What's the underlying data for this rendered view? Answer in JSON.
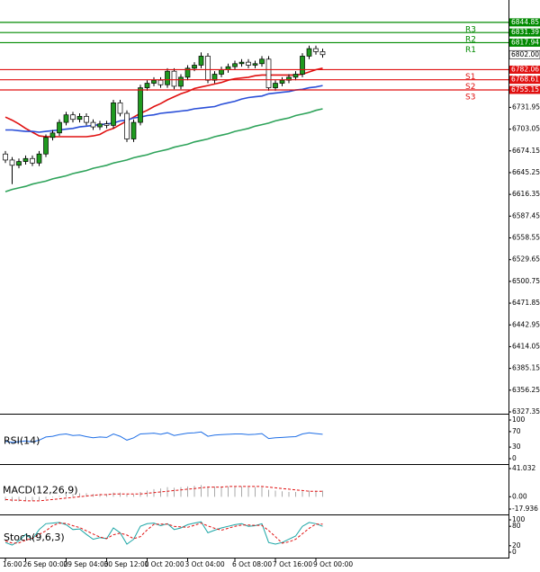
{
  "chart_data": [
    {
      "type": "candlestick",
      "categories": [
        "16:00",
        null,
        null,
        "26 Sep 00:00",
        null,
        null,
        null,
        null,
        null,
        "29 Sep 04:00",
        null,
        null,
        null,
        null,
        null,
        "30 Sep 12:00",
        null,
        null,
        null,
        null,
        null,
        "1 Oct 20:00",
        null,
        null,
        null,
        null,
        null,
        "3 Oct 04:00",
        null,
        null,
        null,
        null,
        null,
        null,
        "6 Oct 08:00",
        null,
        null,
        null,
        null,
        null,
        "7 Oct 16:00",
        null,
        null,
        null,
        null,
        null,
        "9 Oct 00:00",
        null
      ],
      "open": [
        6670,
        6662,
        6655,
        6660,
        6664,
        6658,
        6670,
        6692,
        6698,
        6712,
        6722,
        6716,
        6720,
        6712,
        6706,
        6710,
        6708,
        6738,
        6724,
        6690,
        6712,
        6758,
        6764,
        6768,
        6762,
        6780,
        6760,
        6772,
        6784,
        6788,
        6800,
        6768,
        6776,
        6782,
        6786,
        6790,
        6792,
        6788,
        6790,
        6796,
        6758,
        6764,
        6768,
        6772,
        6776,
        6800,
        6810,
        6806
      ],
      "high": [
        6674,
        6666,
        6664,
        6668,
        6668,
        6674,
        6696,
        6702,
        6716,
        6726,
        6726,
        6724,
        6724,
        6716,
        6714,
        6714,
        6742,
        6742,
        6728,
        6716,
        6762,
        6768,
        6772,
        6772,
        6784,
        6784,
        6776,
        6788,
        6792,
        6805,
        6804,
        6780,
        6786,
        6790,
        6794,
        6796,
        6796,
        6794,
        6800,
        6800,
        6768,
        6772,
        6776,
        6780,
        6804,
        6814,
        6814,
        6810
      ],
      "low": [
        6658,
        6630,
        6651,
        6656,
        6654,
        6654,
        6666,
        6688,
        6694,
        6708,
        6712,
        6712,
        6708,
        6702,
        6702,
        6704,
        6704,
        6720,
        6686,
        6686,
        6708,
        6754,
        6760,
        6758,
        6758,
        6756,
        6756,
        6768,
        6780,
        6784,
        6764,
        6764,
        6772,
        6778,
        6782,
        6786,
        6784,
        6784,
        6786,
        6754,
        6754,
        6760,
        6764,
        6768,
        6772,
        6796,
        6802,
        6798
      ],
      "close": [
        6662,
        6655,
        6660,
        6664,
        6658,
        6670,
        6692,
        6698,
        6712,
        6722,
        6716,
        6720,
        6712,
        6706,
        6710,
        6708,
        6738,
        6724,
        6690,
        6712,
        6758,
        6764,
        6768,
        6762,
        6780,
        6760,
        6772,
        6784,
        6788,
        6800,
        6768,
        6776,
        6782,
        6786,
        6790,
        6792,
        6788,
        6790,
        6796,
        6758,
        6764,
        6768,
        6772,
        6776,
        6800,
        6810,
        6806,
        6802
      ],
      "up_color": "#1f9a1f",
      "down_color": "#ffffff",
      "series": [
        {
          "color": "#e01010",
          "values": [
            6719,
            6715,
            6710,
            6704,
            6699,
            6694,
            6693,
            6693,
            6693,
            6693,
            6693,
            6693,
            6693,
            6694,
            6696,
            6701,
            6704,
            6709,
            6714,
            6719,
            6724,
            6728,
            6733,
            6737,
            6742,
            6746,
            6750,
            6753,
            6757,
            6759,
            6761,
            6763,
            6765,
            6768,
            6770,
            6771,
            6772,
            6774,
            6775,
            6775,
            6775,
            6775,
            6775,
            6775,
            6776,
            6779,
            6782,
            6784
          ]
        },
        {
          "color": "#2a4fd8",
          "values": [
            6702,
            6702,
            6701,
            6700,
            6700,
            6699,
            6700,
            6701,
            6702,
            6703,
            6704,
            6706,
            6707,
            6708,
            6709,
            6710,
            6711,
            6714,
            6715,
            6718,
            6719,
            6721,
            6722,
            6724,
            6725,
            6726,
            6727,
            6728,
            6730,
            6731,
            6732,
            6733,
            6736,
            6738,
            6740,
            6743,
            6745,
            6746,
            6747,
            6750,
            6751,
            6752,
            6753,
            6755,
            6756,
            6758,
            6759,
            6761
          ]
        },
        {
          "color": "#2ea35a",
          "values": [
            6620,
            6623,
            6625,
            6627,
            6630,
            6632,
            6634,
            6637,
            6639,
            6641,
            6644,
            6646,
            6648,
            6651,
            6653,
            6655,
            6658,
            6660,
            6662,
            6665,
            6667,
            6669,
            6672,
            6674,
            6676,
            6679,
            6681,
            6683,
            6686,
            6688,
            6690,
            6693,
            6695,
            6697,
            6700,
            6702,
            6704,
            6707,
            6709,
            6711,
            6714,
            6716,
            6718,
            6721,
            6723,
            6725,
            6728,
            6730
          ]
        }
      ],
      "ylim": [
        6327.35,
        6874.6
      ],
      "yticks": [
        6731.95,
        6703.05,
        6674.15,
        6645.25,
        6616.35,
        6587.45,
        6558.55,
        6529.65,
        6500.75,
        6471.85,
        6442.95,
        6414.05,
        6385.15,
        6356.25,
        6327.35
      ],
      "last_price": {
        "value": 6802,
        "label": "6802.00"
      },
      "levels": [
        {
          "name": "R3",
          "value": 6844.85,
          "color": "#008a00"
        },
        {
          "name": "R2",
          "value": 6831.39,
          "color": "#008a00"
        },
        {
          "name": "R1",
          "value": 6817.94,
          "color": "#008a00"
        },
        {
          "name": "S1",
          "value": 6782.06,
          "color": "#e01010"
        },
        {
          "name": "S2",
          "value": 6768.61,
          "color": "#e01010"
        },
        {
          "name": "S3",
          "value": 6755.15,
          "color": "#e01010"
        }
      ]
    },
    {
      "type": "line",
      "title": "RSI(14)",
      "ylim": [
        0,
        100
      ],
      "yticks": [
        100,
        70,
        30,
        0
      ],
      "series": [
        {
          "color": "#1e6ee6",
          "values": [
            45,
            42,
            44,
            46,
            43,
            48,
            56,
            58,
            62,
            64,
            60,
            61,
            57,
            54,
            56,
            55,
            64,
            58,
            48,
            54,
            64,
            65,
            66,
            63,
            67,
            60,
            63,
            66,
            67,
            69,
            58,
            61,
            62,
            63,
            64,
            64,
            62,
            63,
            65,
            52,
            54,
            55,
            56,
            57,
            64,
            67,
            65,
            63
          ]
        }
      ]
    },
    {
      "type": "macd",
      "title": "MACD(12,26,9)",
      "ylim": [
        -17.936,
        41.032
      ],
      "yticks": [
        41.032,
        {
          "value": 0,
          "label": "0.00"
        },
        -17.936
      ],
      "histogram": {
        "color": "#a8a8a8",
        "values": [
          -6,
          -7,
          -7,
          -6,
          -6,
          -5,
          -3,
          -1,
          1,
          3,
          4,
          5,
          5,
          4,
          4,
          4,
          6,
          6,
          3,
          3,
          7,
          9,
          11,
          12,
          14,
          13,
          14,
          15,
          16,
          17,
          15,
          15,
          15,
          15,
          15,
          15,
          14,
          14,
          14,
          10,
          9,
          8,
          7,
          7,
          8,
          9,
          9,
          9
        ]
      },
      "series": [
        {
          "color": "#e01010",
          "dashed": true,
          "values": [
            -4,
            -5,
            -5,
            -6,
            -6,
            -6,
            -5,
            -4,
            -3,
            -2,
            -1,
            0,
            1,
            2,
            3,
            3,
            4,
            4,
            4,
            4,
            4,
            5,
            6,
            7,
            8,
            9,
            10,
            11,
            12,
            13,
            14,
            14,
            14,
            15,
            15,
            15,
            15,
            15,
            15,
            14,
            13,
            12,
            11,
            10,
            9,
            8,
            8,
            8
          ]
        }
      ]
    },
    {
      "type": "line",
      "title": "Stoch(9,6,3)",
      "ylim": [
        0,
        100
      ],
      "yticks": [
        100,
        80,
        20,
        0
      ],
      "series": [
        {
          "color": "#1aa5a5",
          "values": [
            30,
            22,
            35,
            55,
            40,
            70,
            88,
            90,
            92,
            85,
            70,
            72,
            55,
            40,
            45,
            42,
            75,
            60,
            25,
            40,
            80,
            88,
            90,
            82,
            88,
            70,
            75,
            85,
            90,
            94,
            60,
            68,
            75,
            80,
            85,
            88,
            80,
            82,
            88,
            30,
            25,
            30,
            40,
            50,
            80,
            92,
            88,
            80
          ]
        },
        {
          "color": "#e01010",
          "dashed": true,
          "values": [
            35,
            28,
            29,
            37,
            43,
            55,
            66,
            82,
            90,
            89,
            82,
            76,
            66,
            56,
            47,
            42,
            54,
            59,
            53,
            42,
            48,
            69,
            86,
            87,
            87,
            80,
            78,
            77,
            83,
            90,
            81,
            74,
            68,
            74,
            80,
            84,
            84,
            83,
            83,
            67,
            48,
            28,
            32,
            40,
            57,
            74,
            87,
            87
          ]
        }
      ]
    }
  ]
}
